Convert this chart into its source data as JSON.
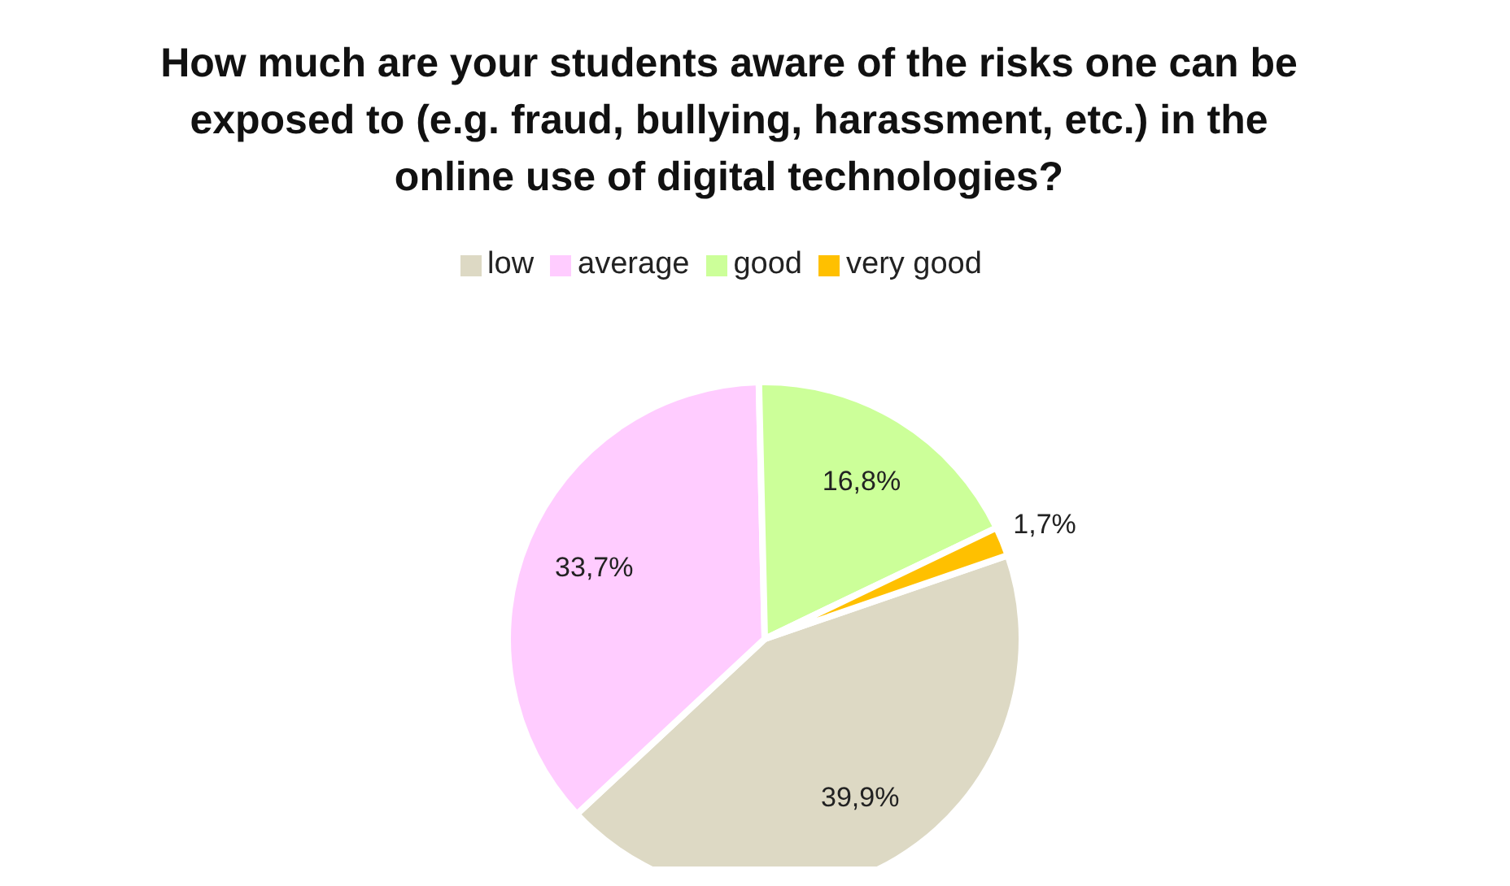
{
  "chart_data": {
    "type": "pie",
    "title": "How much are your students aware of the risks one can be exposed to (e.g. fraud, bullying, harassment, etc.) in the online use of digital technologies?",
    "categories": [
      "low",
      "average",
      "good",
      "very good"
    ],
    "values": [
      39.9,
      33.7,
      16.8,
      1.7
    ],
    "colors": [
      "#ddd9c4",
      "#ffccff",
      "#ccff99",
      "#ffc000"
    ],
    "value_labels": [
      "39,9%",
      "33,7%",
      "16,8%",
      "1,7%"
    ],
    "legend": "top"
  }
}
